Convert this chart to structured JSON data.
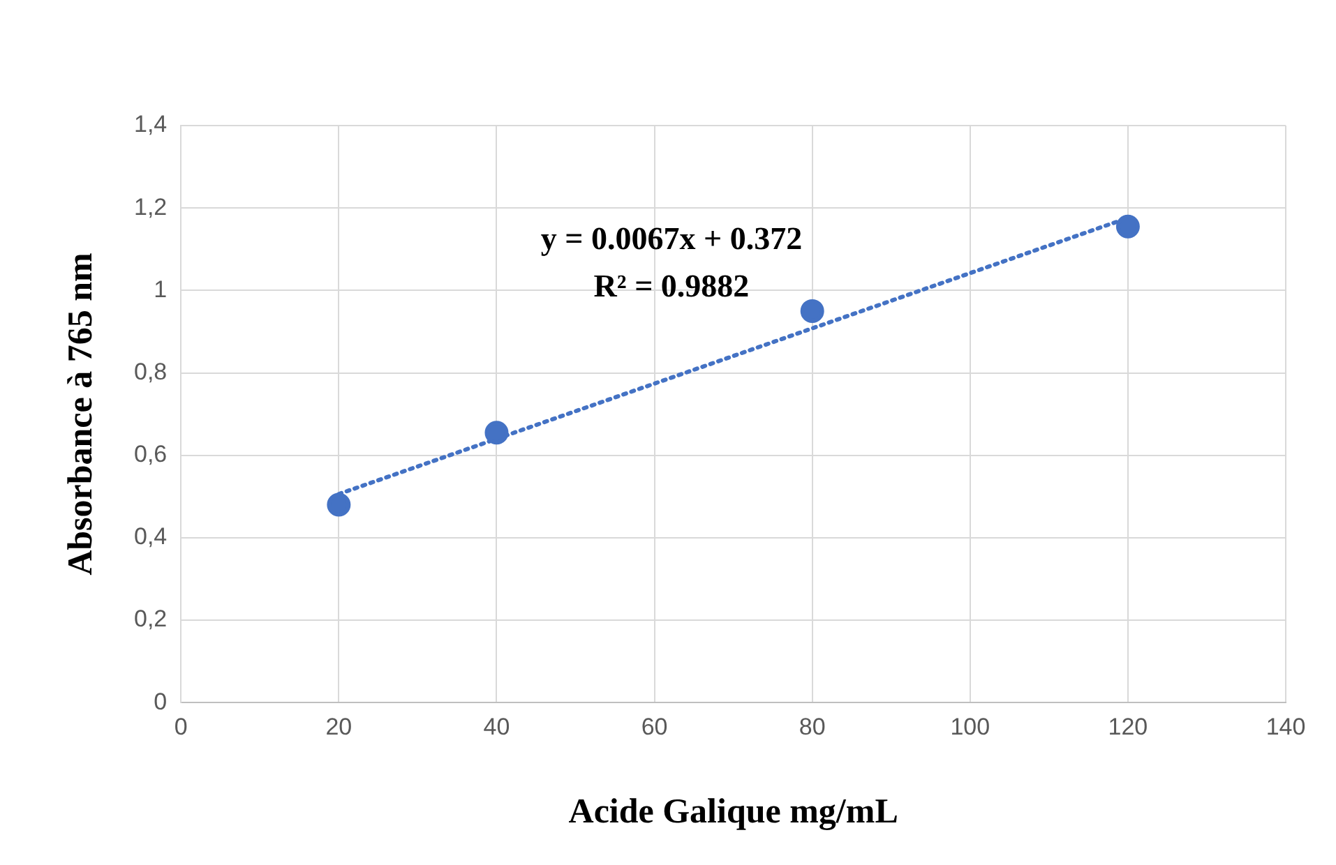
{
  "chart_data": {
    "type": "scatter",
    "xlabel": "Acide Galique mg/mL",
    "ylabel": "Absorbance à 765 nm",
    "xlim": [
      0,
      140
    ],
    "xticks": [
      0,
      20,
      40,
      60,
      80,
      100,
      120,
      140
    ],
    "ylim": [
      0,
      1.4
    ],
    "yticks": [
      0,
      {
        "value": 0.2,
        "label": "0,2"
      },
      {
        "value": 0.4,
        "label": "0,4"
      },
      {
        "value": 0.6,
        "label": "0,6"
      },
      {
        "value": 0.8,
        "label": "0,8"
      },
      1,
      {
        "value": 1.2,
        "label": "1,2"
      },
      {
        "value": 1.4,
        "label": "1,4"
      }
    ],
    "grid": true,
    "legend": false,
    "marker": "circle",
    "series": [
      {
        "type": "scatter",
        "color": "#4472c4",
        "x": [
          20,
          40,
          80,
          120
        ],
        "values": [
          0.48,
          0.655,
          0.95,
          1.155
        ]
      },
      {
        "type": "line",
        "color": "#4472c4",
        "line_style": "dotted",
        "marker": "none",
        "x": [
          20,
          120
        ],
        "values": [
          0.506,
          1.176
        ]
      }
    ],
    "annotations": [
      "y = 0.0067x + 0.372",
      "R² = 0.9882"
    ]
  }
}
